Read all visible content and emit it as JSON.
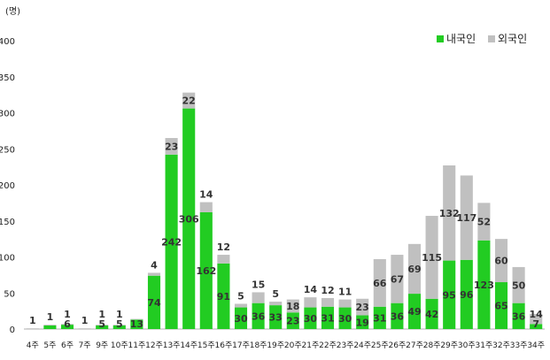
{
  "chart_data": {
    "type": "bar",
    "stacked": true,
    "unit_label": "(명)",
    "ylim": [
      0,
      400
    ],
    "yticks": [
      0,
      50,
      100,
      150,
      200,
      250,
      300,
      350,
      400
    ],
    "grid": false,
    "legend_position": "top-right",
    "categories": [
      "4주",
      "5주",
      "6주",
      "7주",
      "9주",
      "10주",
      "11주",
      "12주",
      "13주",
      "14주",
      "15주",
      "16주",
      "17주",
      "18주",
      "19주",
      "20주",
      "21주",
      "22주",
      "23주",
      "24주",
      "25주",
      "26주",
      "27주",
      "28주",
      "29주",
      "30주",
      "31주",
      "32주",
      "33주",
      "34주"
    ],
    "series": [
      {
        "name": "내국인",
        "color": "#22cc22",
        "values": [
          0,
          5,
          6,
          0,
          5,
          5,
          13,
          74,
          242,
          306,
          162,
          91,
          30,
          36,
          33,
          23,
          30,
          31,
          30,
          19,
          31,
          36,
          49,
          42,
          95,
          96,
          123,
          65,
          36,
          7
        ],
        "labels": [
          "",
          "",
          "6",
          "",
          "5",
          "5",
          "13",
          "74",
          "242",
          "306",
          "162",
          "91",
          "30",
          "36",
          "33",
          "23",
          "30",
          "31",
          "30",
          "19",
          "31",
          "36",
          "49",
          "42",
          "95",
          "96",
          "123",
          "65",
          "36",
          "7"
        ]
      },
      {
        "name": "외국인",
        "color": "#c0c0c0",
        "values": [
          1,
          1,
          1,
          1,
          1,
          1,
          1,
          4,
          23,
          22,
          14,
          12,
          5,
          15,
          5,
          18,
          14,
          12,
          11,
          23,
          66,
          67,
          69,
          115,
          132,
          117,
          52,
          60,
          50,
          14
        ],
        "labels": [
          "1",
          "1",
          "1",
          "1",
          "1",
          "1",
          "",
          "4",
          "23",
          "22",
          "14",
          "12",
          "5",
          "15",
          "5",
          "18",
          "14",
          "12",
          "11",
          "23",
          "66",
          "67",
          "69",
          "115",
          "132",
          "117",
          "52",
          "60",
          "50",
          "14"
        ]
      }
    ]
  }
}
